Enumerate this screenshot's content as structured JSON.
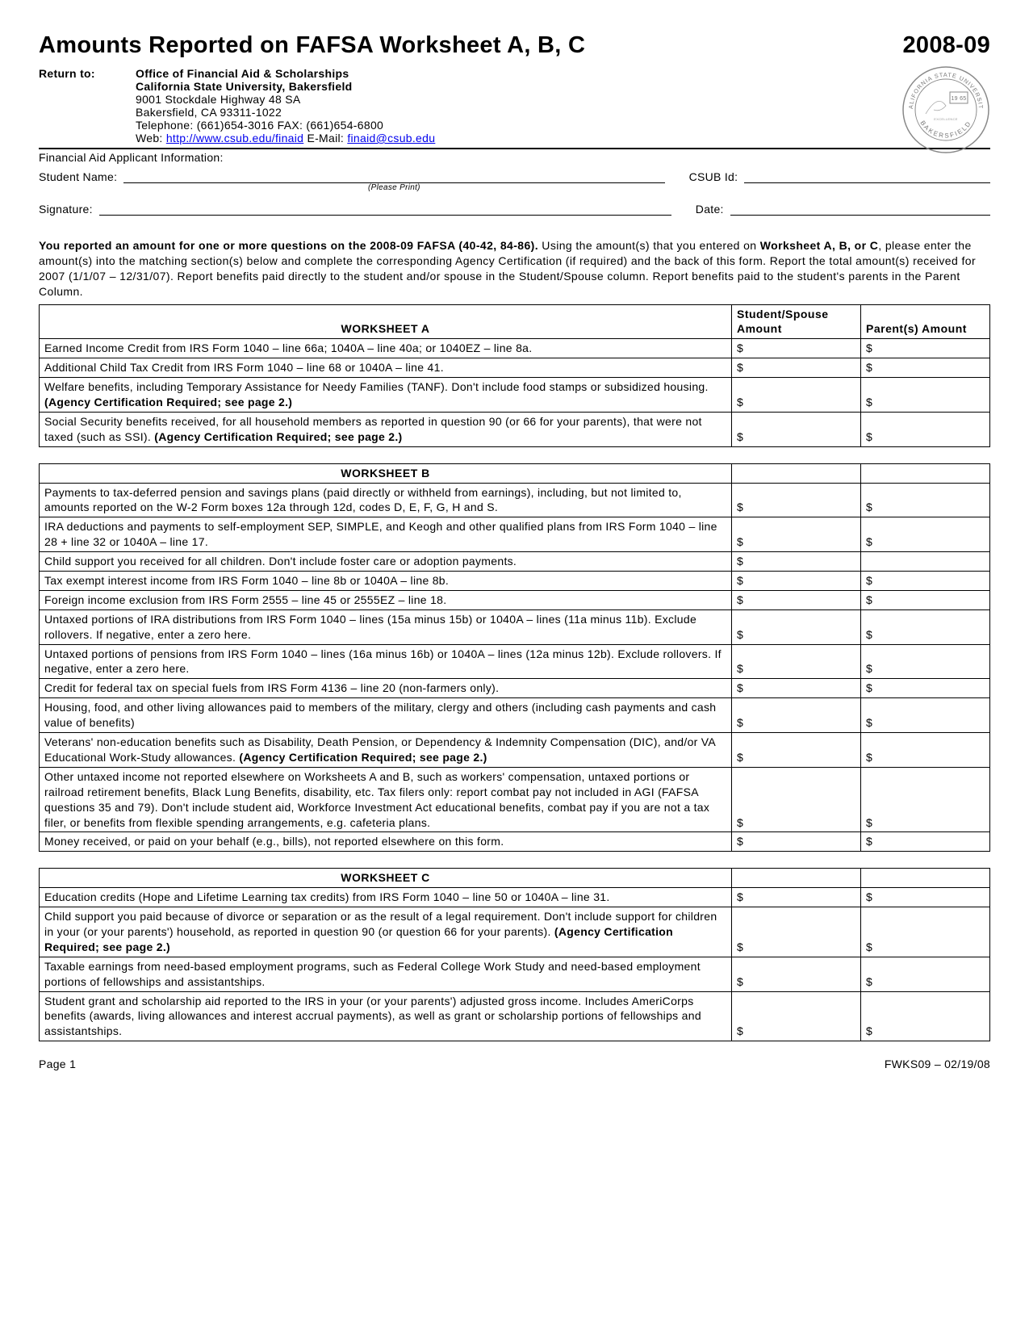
{
  "header": {
    "title": "Amounts Reported on FAFSA Worksheet A, B, C",
    "year": "2008-09",
    "return_to_label": "Return to:",
    "office": "Office of Financial Aid & Scholarships",
    "university": "California State University, Bakersfield",
    "address1": "9001 Stockdale Highway 48 SA",
    "address2": "Bakersfield, CA 93311-1022",
    "phone": "Telephone: (661)654-3016   FAX: (661)654-6800",
    "web_label": "Web: ",
    "web_url": "http://www.csub.edu/finaid",
    "email_label": "   E-Mail: ",
    "email": "finaid@csub.edu",
    "seal_outer": "CALIFORNIA STATE UNIVERSITY",
    "seal_inner": "BAKERSFIELD",
    "seal_year": "19 65"
  },
  "applicant": {
    "section_label": "Financial Aid Applicant Information:",
    "name_label": "Student Name:",
    "please_print": "(Please Print)",
    "id_label": "CSUB Id:",
    "sig_label": "Signature:",
    "date_label": "Date:"
  },
  "instructions": {
    "bold1": "You reported an amount for one or more questions on the 2008-09 FAFSA (40-42, 84-86).",
    "text1": "  Using the amount(s) that you entered on ",
    "bold2": "Worksheet A, B, or C",
    "text2": ", please enter the amount(s) into the matching section(s) below and complete the corresponding Agency Certification (if required) and the back of this form. Report the total amount(s) received for 2007 (1/1/07 – 12/31/07). Report benefits paid directly to the student and/or spouse in the Student/Spouse column. Report benefits paid to the student's parents in the Parent Column."
  },
  "columns": {
    "student": "Student/Spouse Amount",
    "parent": "Parent(s) Amount"
  },
  "dollar": "$",
  "worksheetA": {
    "title": "WORKSHEET A",
    "rows": [
      {
        "text": "Earned Income Credit from IRS Form 1040 – line 66a; 1040A – line 40a; or 1040EZ – line 8a."
      },
      {
        "text": "Additional Child Tax Credit from IRS Form 1040 – line 68 or 1040A – line 41."
      },
      {
        "text": "Welfare benefits, including Temporary Assistance for Needy Families (TANF).  Don't include food stamps or subsidized housing. ",
        "bold": "(Agency Certification Required; see page 2.)"
      },
      {
        "text": "Social Security benefits received, for all household members as reported in question 90 (or 66 for your parents), that were not taxed (such as SSI).  ",
        "bold": "(Agency Certification Required; see page 2.)"
      }
    ]
  },
  "worksheetB": {
    "title": "WORKSHEET B",
    "rows": [
      {
        "text": "Payments to tax-deferred pension and savings plans (paid directly or withheld from earnings), including, but not limited to, amounts reported on the W-2 Form boxes 12a through 12d, codes D, E, F, G, H and S."
      },
      {
        "text": "IRA deductions and payments to self-employment SEP, SIMPLE, and Keogh and other qualified plans from IRS Form 1040 – line 28 + line 32 or 1040A – line 17."
      },
      {
        "text": "Child support you received for all children.  Don't include foster care or adoption payments.",
        "noParent": true
      },
      {
        "text": "Tax exempt interest income from IRS Form 1040 – line 8b or 1040A – line 8b."
      },
      {
        "text": "Foreign income exclusion from IRS Form 2555 – line 45 or 2555EZ – line 18."
      },
      {
        "text": "Untaxed portions of IRA distributions from IRS Form 1040 – lines (15a minus 15b) or 1040A – lines (11a minus 11b).  Exclude rollovers.  If negative, enter a zero here."
      },
      {
        "text": "Untaxed portions of pensions from IRS Form 1040 – lines (16a minus 16b) or 1040A – lines (12a minus 12b).  Exclude rollovers.  If negative, enter a zero here."
      },
      {
        "text": "Credit for federal tax on special fuels from IRS Form 4136 – line 20 (non-farmers only)."
      },
      {
        "text": "Housing, food, and other living allowances paid to members of the military, clergy and others (including cash payments and cash value of benefits)"
      },
      {
        "text": "Veterans' non-education benefits such as Disability, Death Pension, or Dependency & Indemnity Compensation (DIC), and/or VA Educational Work-Study allowances.  ",
        "bold": "(Agency Certification Required; see page 2.)"
      },
      {
        "text": "Other untaxed income not reported elsewhere on Worksheets A and B, such as workers' compensation, untaxed portions or railroad retirement benefits, Black Lung Benefits, disability, etc.  Tax filers only: report combat pay not included in AGI (FAFSA questions 35 and 79).  Don't include student aid, Workforce Investment Act educational benefits, combat pay if you are not a tax filer, or benefits from flexible spending arrangements, e.g. cafeteria plans."
      },
      {
        "text": "Money received, or paid on your behalf (e.g., bills), not reported elsewhere on this form."
      }
    ]
  },
  "worksheetC": {
    "title": "WORKSHEET C",
    "rows": [
      {
        "text": "Education credits (Hope and Lifetime Learning tax credits) from IRS Form 1040 – line 50 or 1040A – line 31."
      },
      {
        "text": "Child support you paid because of divorce or separation or as the result of a legal requirement.  Don't include support for children in your (or your parents') household, as reported in question 90 (or question 66 for your parents).  ",
        "bold": "(Agency Certification Required; see page 2.)"
      },
      {
        "text": "Taxable earnings from need-based employment programs, such as Federal College Work Study and need-based employment portions of fellowships and assistantships."
      },
      {
        "text": "Student grant and scholarship aid reported to the IRS in your (or your parents') adjusted gross income.  Includes AmeriCorps benefits (awards, living allowances and interest accrual payments), as well as grant or scholarship portions of fellowships and assistantships."
      }
    ]
  },
  "footer": {
    "page": "Page 1",
    "code": "FWKS09 – 02/19/08"
  }
}
